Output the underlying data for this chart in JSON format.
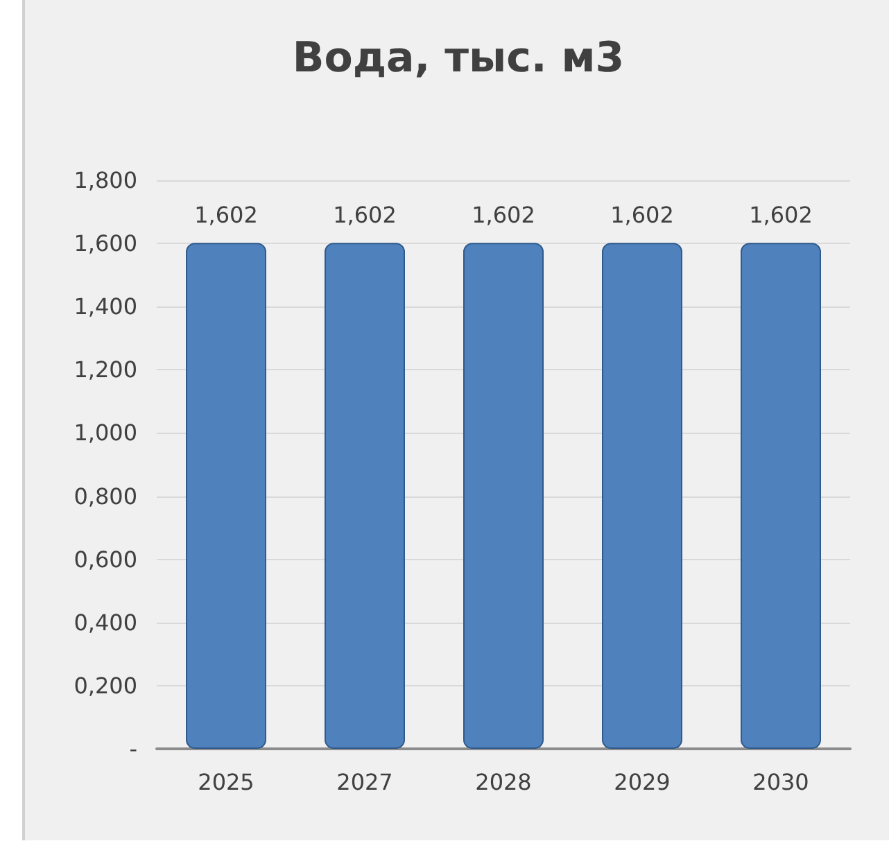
{
  "chart_data": {
    "type": "bar",
    "title": "Вода, тыс. м3",
    "categories": [
      "2025",
      "2027",
      "2028",
      "2029",
      "2030"
    ],
    "values": [
      1.602,
      1.602,
      1.602,
      1.602,
      1.602
    ],
    "value_labels": [
      "1,602",
      "1,602",
      "1,602",
      "1,602",
      "1,602"
    ],
    "color": "#4f81bd",
    "ylim": [
      0,
      1.8
    ],
    "yticks": [
      {
        "value": 0,
        "label": "-"
      },
      {
        "value": 0.2,
        "label": "0,200"
      },
      {
        "value": 0.4,
        "label": "0,400"
      },
      {
        "value": 0.6,
        "label": "0,600"
      },
      {
        "value": 0.8,
        "label": "0,800"
      },
      {
        "value": 1,
        "label": "1,000"
      },
      {
        "value": 1.2,
        "label": "1,200"
      },
      {
        "value": 1.4,
        "label": "1,400"
      },
      {
        "value": 1.6,
        "label": "1,600"
      },
      {
        "value": 1.8,
        "label": "1,800"
      }
    ],
    "grid": "y"
  }
}
